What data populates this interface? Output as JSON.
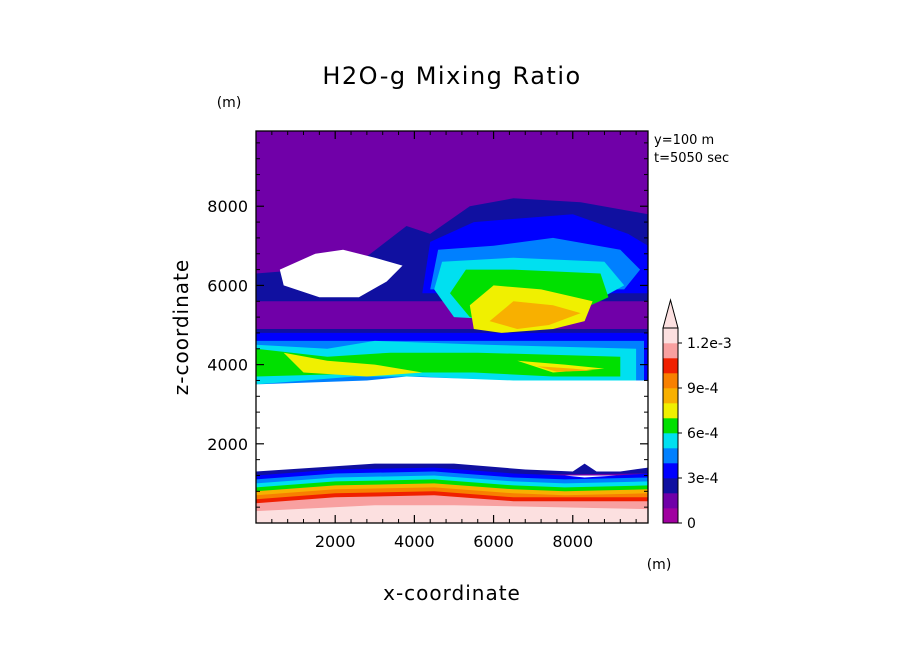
{
  "chart_data": {
    "type": "heatmap",
    "title": "H2O-g Mixing Ratio",
    "xlabel": "x-coordinate",
    "ylabel": "z-coordinate",
    "x_unit": "(m)",
    "y_unit": "(m)",
    "xlim": [
      0,
      9900
    ],
    "ylim": [
      0,
      9900
    ],
    "x_ticks": [
      2000,
      4000,
      6000,
      8000
    ],
    "y_ticks": [
      2000,
      4000,
      6000,
      8000
    ],
    "annotations": [
      "y=100 m",
      "t=5050 sec"
    ],
    "colorbar": {
      "levels": [
        0,
        0.0001,
        0.0002,
        0.0003,
        0.0004,
        0.0005,
        0.0006,
        0.0007,
        0.0008,
        0.0009,
        0.001,
        0.0011,
        0.0012
      ],
      "tick_labels": [
        "1.2e-3",
        "9e-4",
        "6e-4",
        "3e-4",
        "0"
      ],
      "tick_values": [
        0.0012,
        0.0009,
        0.0006,
        0.0003,
        0
      ],
      "colors": [
        "#a000a0",
        "#7000a8",
        "#1010a0",
        "#0000ff",
        "#0080ff",
        "#00e0f0",
        "#00e000",
        "#f0f000",
        "#f8b000",
        "#f88000",
        "#f02000",
        "#f8a0a0",
        "#fce0e0"
      ],
      "extend": "max"
    },
    "layers": [
      {
        "level": 1,
        "points": [
          [
            0,
            9900
          ],
          [
            9900,
            9900
          ],
          [
            9900,
            1200
          ],
          [
            0,
            1200
          ]
        ]
      },
      {
        "level": 1,
        "points": [
          [
            1800,
            8700
          ],
          [
            3500,
            8600
          ],
          [
            4400,
            8600
          ],
          [
            5500,
            8900
          ],
          [
            7000,
            8900
          ],
          [
            8500,
            8800
          ],
          [
            9900,
            8500
          ],
          [
            9900,
            5300
          ],
          [
            0,
            5300
          ],
          [
            0,
            7500
          ],
          [
            1200,
            7800
          ]
        ]
      },
      {
        "level": 1,
        "points": [
          [
            0,
            5200
          ],
          [
            9900,
            5200
          ],
          [
            9900,
            2600
          ],
          [
            0,
            2600
          ]
        ]
      },
      {
        "level": 2,
        "points": [
          [
            3800,
            7500
          ],
          [
            4400,
            7300
          ],
          [
            5400,
            8000
          ],
          [
            6500,
            8200
          ],
          [
            8200,
            8100
          ],
          [
            9900,
            7800
          ],
          [
            9900,
            5600
          ],
          [
            0,
            5600
          ],
          [
            0,
            6300
          ],
          [
            2500,
            6500
          ]
        ]
      },
      {
        "level": 2,
        "points": [
          [
            0,
            4900
          ],
          [
            9900,
            4900
          ],
          [
            9900,
            2900
          ],
          [
            0,
            2900
          ]
        ]
      },
      {
        "level": 3,
        "points": [
          [
            4400,
            7100
          ],
          [
            5500,
            7600
          ],
          [
            8000,
            7800
          ],
          [
            9400,
            7300
          ],
          [
            9900,
            7000
          ],
          [
            9900,
            5800
          ],
          [
            4200,
            5800
          ]
        ]
      },
      {
        "level": 3,
        "points": [
          [
            0,
            4800
          ],
          [
            9900,
            4800
          ],
          [
            9900,
            3000
          ],
          [
            0,
            3000
          ]
        ]
      },
      {
        "level": 4,
        "points": [
          [
            4600,
            6900
          ],
          [
            6000,
            7000
          ],
          [
            7500,
            7200
          ],
          [
            9200,
            6900
          ],
          [
            9700,
            6400
          ],
          [
            9300,
            5900
          ],
          [
            4400,
            5900
          ]
        ]
      },
      {
        "level": 4,
        "points": [
          [
            0,
            4600
          ],
          [
            9800,
            4600
          ],
          [
            9800,
            3100
          ],
          [
            0,
            3100
          ]
        ]
      },
      {
        "level": 5,
        "points": [
          [
            4700,
            6600
          ],
          [
            6500,
            6700
          ],
          [
            8800,
            6600
          ],
          [
            9300,
            6000
          ],
          [
            8200,
            5400
          ],
          [
            6800,
            5100
          ],
          [
            5000,
            5200
          ],
          [
            4500,
            5900
          ]
        ]
      },
      {
        "level": 5,
        "points": [
          [
            0,
            4500
          ],
          [
            1800,
            4400
          ],
          [
            3000,
            4600
          ],
          [
            5800,
            4500
          ],
          [
            9600,
            4400
          ],
          [
            9600,
            3500
          ],
          [
            6000,
            3600
          ],
          [
            4200,
            3700
          ],
          [
            2500,
            3700
          ],
          [
            0,
            3500
          ]
        ]
      },
      {
        "level": 6,
        "points": [
          [
            5300,
            6400
          ],
          [
            6500,
            6400
          ],
          [
            8700,
            6300
          ],
          [
            8900,
            5700
          ],
          [
            7800,
            5200
          ],
          [
            6200,
            5000
          ],
          [
            5400,
            5200
          ],
          [
            4900,
            5800
          ]
        ]
      },
      {
        "level": 6,
        "points": [
          [
            0,
            4400
          ],
          [
            1800,
            4200
          ],
          [
            3400,
            4300
          ],
          [
            5600,
            4300
          ],
          [
            9200,
            4200
          ],
          [
            9200,
            3700
          ],
          [
            7500,
            3700
          ],
          [
            5500,
            3800
          ],
          [
            3600,
            3800
          ],
          [
            0,
            3700
          ]
        ]
      },
      {
        "level": 7,
        "points": [
          [
            6000,
            6000
          ],
          [
            7200,
            5900
          ],
          [
            8500,
            5600
          ],
          [
            8300,
            5100
          ],
          [
            7500,
            4900
          ],
          [
            6200,
            4800
          ],
          [
            5500,
            4900
          ],
          [
            5400,
            5500
          ]
        ]
      },
      {
        "level": 7,
        "points": [
          [
            700,
            4300
          ],
          [
            1800,
            4100
          ],
          [
            3000,
            4000
          ],
          [
            4200,
            3800
          ],
          [
            2800,
            3700
          ],
          [
            1200,
            3800
          ]
        ]
      },
      {
        "level": 7,
        "points": [
          [
            6600,
            4100
          ],
          [
            7800,
            4000
          ],
          [
            8800,
            3900
          ],
          [
            7500,
            3800
          ]
        ]
      },
      {
        "level": 8,
        "points": [
          [
            6500,
            5600
          ],
          [
            7500,
            5500
          ],
          [
            8200,
            5300
          ],
          [
            7400,
            5000
          ],
          [
            6600,
            4900
          ],
          [
            5900,
            5100
          ]
        ]
      },
      {
        "level": 8,
        "points": [
          [
            7100,
            3960
          ],
          [
            8000,
            3900
          ],
          [
            8500,
            3850
          ],
          [
            7600,
            3820
          ]
        ]
      },
      {
        "level": 0,
        "points": [
          [
            600,
            6400
          ],
          [
            1500,
            6800
          ],
          [
            2200,
            6900
          ],
          [
            3000,
            6700
          ],
          [
            3700,
            6500
          ],
          [
            3300,
            6100
          ],
          [
            2600,
            5700
          ],
          [
            1600,
            5700
          ],
          [
            700,
            6000
          ]
        ]
      },
      {
        "level": 0,
        "points": [
          [
            0,
            3500
          ],
          [
            2800,
            3600
          ],
          [
            3800,
            3700
          ],
          [
            6500,
            3600
          ],
          [
            9900,
            3600
          ],
          [
            9900,
            1300
          ],
          [
            0,
            1300
          ]
        ]
      },
      {
        "level": 2,
        "points": [
          [
            0,
            1300
          ],
          [
            3000,
            1500
          ],
          [
            5000,
            1500
          ],
          [
            6800,
            1350
          ],
          [
            8000,
            1300
          ],
          [
            8300,
            1500
          ],
          [
            8600,
            1300
          ],
          [
            9200,
            1300
          ],
          [
            9900,
            1400
          ],
          [
            9900,
            1250
          ],
          [
            0,
            1150
          ]
        ]
      },
      {
        "level": 3,
        "points": [
          [
            0,
            1200
          ],
          [
            2000,
            1350
          ],
          [
            4500,
            1400
          ],
          [
            6500,
            1250
          ],
          [
            7800,
            1200
          ],
          [
            8300,
            1150
          ],
          [
            9900,
            1250
          ],
          [
            9900,
            1000
          ],
          [
            0,
            900
          ]
        ]
      },
      {
        "level": 4,
        "points": [
          [
            0,
            1100
          ],
          [
            2000,
            1250
          ],
          [
            4500,
            1300
          ],
          [
            6500,
            1150
          ],
          [
            7800,
            1100
          ],
          [
            9900,
            1150
          ],
          [
            9900,
            900
          ],
          [
            0,
            800
          ]
        ]
      },
      {
        "level": 5,
        "points": [
          [
            0,
            1000
          ],
          [
            2000,
            1150
          ],
          [
            4500,
            1200
          ],
          [
            6500,
            1050
          ],
          [
            7800,
            1000
          ],
          [
            9900,
            1050
          ],
          [
            9900,
            800
          ],
          [
            0,
            700
          ]
        ]
      },
      {
        "level": 6,
        "points": [
          [
            0,
            900
          ],
          [
            2000,
            1050
          ],
          [
            4500,
            1100
          ],
          [
            6500,
            950
          ],
          [
            7800,
            900
          ],
          [
            9900,
            950
          ],
          [
            9900,
            700
          ],
          [
            0,
            600
          ]
        ]
      },
      {
        "level": 8,
        "points": [
          [
            0,
            800
          ],
          [
            2000,
            950
          ],
          [
            4500,
            1000
          ],
          [
            6500,
            850
          ],
          [
            7800,
            800
          ],
          [
            9900,
            850
          ],
          [
            9900,
            600
          ],
          [
            0,
            500
          ]
        ]
      },
      {
        "level": 9,
        "points": [
          [
            0,
            700
          ],
          [
            2000,
            850
          ],
          [
            4500,
            900
          ],
          [
            6500,
            750
          ],
          [
            7800,
            700
          ],
          [
            9900,
            750
          ],
          [
            9900,
            500
          ],
          [
            0,
            400
          ]
        ]
      },
      {
        "level": 10,
        "points": [
          [
            0,
            600
          ],
          [
            2000,
            750
          ],
          [
            4500,
            800
          ],
          [
            6500,
            650
          ],
          [
            9900,
            650
          ],
          [
            9900,
            450
          ],
          [
            0,
            350
          ]
        ]
      },
      {
        "level": 11,
        "points": [
          [
            0,
            500
          ],
          [
            2000,
            650
          ],
          [
            4500,
            700
          ],
          [
            6500,
            550
          ],
          [
            9900,
            550
          ],
          [
            9900,
            0
          ],
          [
            0,
            0
          ]
        ]
      },
      {
        "level": 12,
        "points": [
          [
            0,
            300
          ],
          [
            3000,
            450
          ],
          [
            5000,
            450
          ],
          [
            9900,
            350
          ],
          [
            9900,
            0
          ],
          [
            0,
            0
          ]
        ]
      }
    ]
  }
}
